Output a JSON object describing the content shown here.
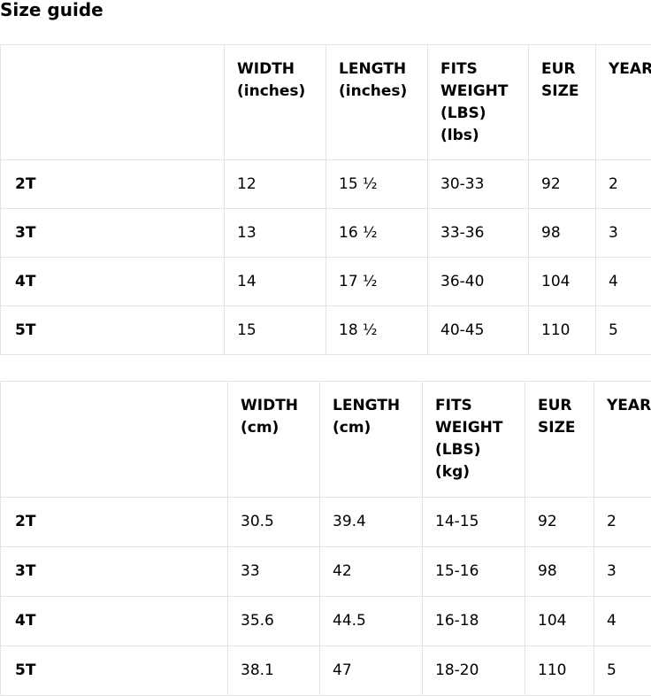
{
  "title": "Size guide",
  "tables": [
    {
      "headers": [
        "",
        "WIDTH (inches)",
        "LENGTH (inches)",
        "FITS WEIGHT (LBS) (lbs)",
        "EUR SIZE",
        "YEAR"
      ],
      "rows": [
        [
          "2T",
          "12",
          "15 ½",
          "30-33",
          "92",
          "2"
        ],
        [
          "3T",
          "13",
          "16 ½",
          "33-36",
          "98",
          "3"
        ],
        [
          "4T",
          "14",
          "17 ½",
          "36-40",
          "104",
          "4"
        ],
        [
          "5T",
          "15",
          "18 ½",
          "40-45",
          "110",
          "5"
        ]
      ]
    },
    {
      "headers": [
        "",
        "WIDTH (cm)",
        "LENGTH (cm)",
        "FITS WEIGHT (LBS) (kg)",
        "EUR SIZE",
        "YEAR"
      ],
      "rows": [
        [
          "2T",
          "30.5",
          "39.4",
          "14-15",
          "92",
          "2"
        ],
        [
          "3T",
          "33",
          "42",
          "15-16",
          "98",
          "3"
        ],
        [
          "4T",
          "35.6",
          "44.5",
          "16-18",
          "104",
          "4"
        ],
        [
          "5T",
          "38.1",
          "47",
          "18-20",
          "110",
          "5"
        ]
      ]
    }
  ]
}
